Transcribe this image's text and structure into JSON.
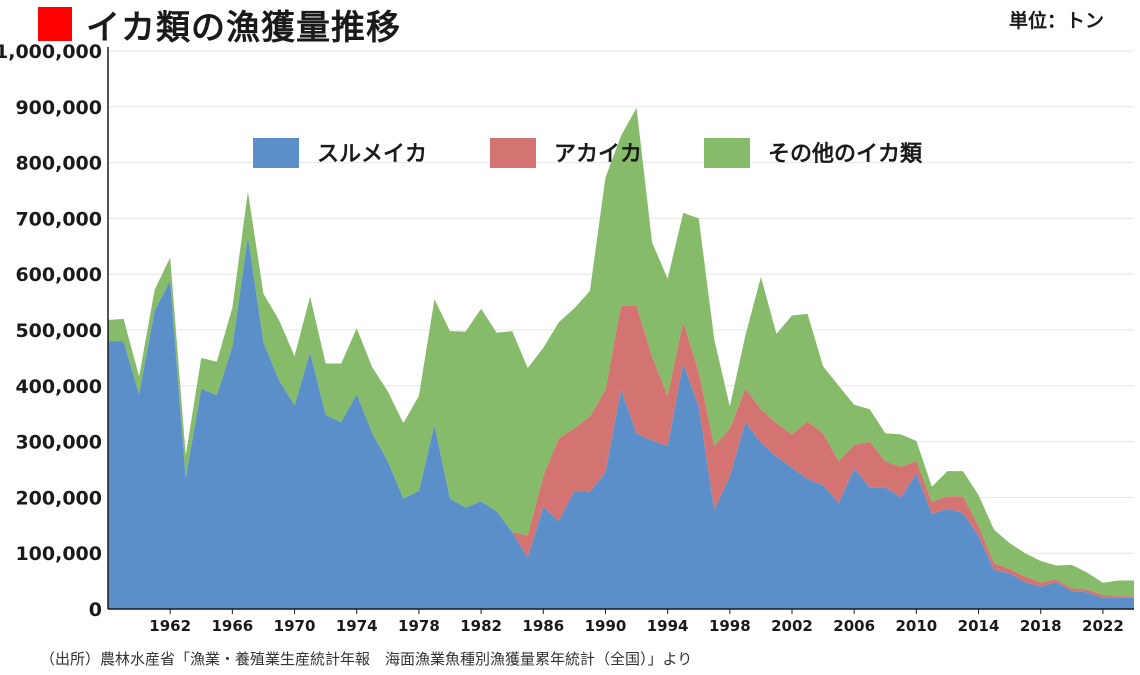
{
  "header": {
    "title": "イカ類の漁獲量推移",
    "unit": "単位：トン",
    "title_marker_color": "#ff0000"
  },
  "source": "（出所）農林水産省「漁業・養殖業生産統計年報　海面漁業魚種別漁獲量累年統計（全国）」より",
  "chart_data": {
    "type": "area",
    "stacked": true,
    "title": "イカ類の漁獲量推移",
    "xlabel": "",
    "ylabel": "",
    "ylim": [
      0,
      1000000
    ],
    "xlim": [
      1958,
      2024
    ],
    "grid": true,
    "legend_position": "top-center",
    "x": [
      1958,
      1959,
      1960,
      1961,
      1962,
      1963,
      1964,
      1965,
      1966,
      1967,
      1968,
      1969,
      1970,
      1971,
      1972,
      1973,
      1974,
      1975,
      1976,
      1977,
      1978,
      1979,
      1980,
      1981,
      1982,
      1983,
      1984,
      1985,
      1986,
      1987,
      1988,
      1989,
      1990,
      1991,
      1992,
      1993,
      1994,
      1995,
      1996,
      1997,
      1998,
      1999,
      2000,
      2001,
      2002,
      2003,
      2004,
      2005,
      2006,
      2007,
      2008,
      2009,
      2010,
      2011,
      2012,
      2013,
      2014,
      2015,
      2016,
      2017,
      2018,
      2019,
      2020,
      2021,
      2022,
      2023,
      2024
    ],
    "x_ticks": [
      1962,
      1966,
      1970,
      1974,
      1978,
      1982,
      1986,
      1990,
      1994,
      1998,
      2002,
      2006,
      2010,
      2014,
      2018,
      2022
    ],
    "y_ticks": [
      0,
      100000,
      200000,
      300000,
      400000,
      500000,
      600000,
      700000,
      800000,
      900000,
      1000000
    ],
    "y_tick_labels": [
      "0",
      "100,000",
      "200,000",
      "300,000",
      "400,000",
      "500,000",
      "600,000",
      "700,000",
      "800,000",
      "900,000",
      "1,000,000"
    ],
    "series": [
      {
        "name": "スルメイカ",
        "color": "#5b8fc9",
        "values": [
          480000,
          480000,
          385000,
          535000,
          588000,
          235000,
          395000,
          383000,
          470000,
          668000,
          478000,
          410000,
          365000,
          460000,
          348000,
          335000,
          385000,
          315000,
          265000,
          198000,
          212000,
          330000,
          198000,
          182000,
          193000,
          175000,
          138000,
          92000,
          183000,
          158000,
          212000,
          210000,
          245000,
          393000,
          315000,
          302000,
          292000,
          440000,
          363000,
          178000,
          238000,
          335000,
          298000,
          273000,
          253000,
          233000,
          222000,
          190000,
          252000,
          218000,
          218000,
          200000,
          243000,
          170000,
          180000,
          172000,
          131000,
          70000,
          64000,
          48000,
          40000,
          48000,
          32000,
          30000,
          20000,
          20000,
          20000
        ]
      },
      {
        "name": "アカイカ",
        "color": "#d47472",
        "values": [
          0,
          0,
          0,
          0,
          0,
          0,
          0,
          0,
          0,
          0,
          0,
          0,
          0,
          0,
          0,
          0,
          0,
          0,
          0,
          0,
          0,
          0,
          0,
          0,
          0,
          0,
          0,
          40000,
          55000,
          148000,
          112000,
          135000,
          148000,
          150000,
          228000,
          150000,
          90000,
          75000,
          62000,
          115000,
          85000,
          60000,
          60000,
          60000,
          60000,
          103000,
          93000,
          75000,
          42000,
          82000,
          47000,
          55000,
          22000,
          22000,
          22000,
          30000,
          18000,
          12000,
          8000,
          10000,
          8000,
          5000,
          5000,
          5000,
          5000,
          3000,
          3000
        ]
      },
      {
        "name": "その他のイカ類",
        "color": "#86bb6a",
        "values": [
          38000,
          40000,
          32000,
          37000,
          42000,
          40000,
          55000,
          60000,
          70000,
          80000,
          87000,
          108000,
          88000,
          100000,
          92000,
          105000,
          118000,
          118000,
          125000,
          135000,
          170000,
          225000,
          300000,
          315000,
          345000,
          320000,
          360000,
          300000,
          230000,
          208000,
          215000,
          225000,
          380000,
          305000,
          355000,
          205000,
          210000,
          195000,
          275000,
          190000,
          40000,
          95000,
          237000,
          160000,
          213000,
          193000,
          120000,
          135000,
          72000,
          58000,
          50000,
          58000,
          36000,
          27000,
          45000,
          45000,
          55000,
          60000,
          46000,
          42000,
          38000,
          25000,
          42000,
          30000,
          22000,
          28000,
          28000
        ]
      }
    ]
  }
}
